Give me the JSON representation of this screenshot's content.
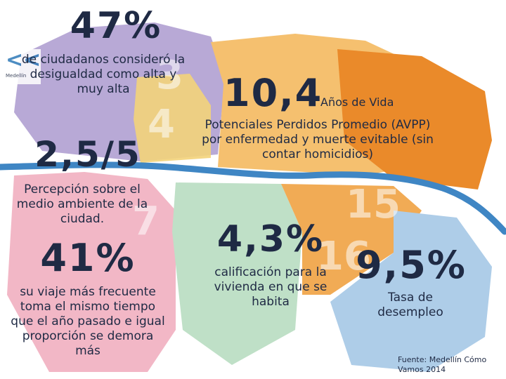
{
  "logo": {
    "mark": "<<",
    "small_text": "Medellín"
  },
  "stat_1": {
    "value": "47%",
    "text": "de ciudadanos consideró la desigualdad como alta y muy alta"
  },
  "stat_2": {
    "value": "10,4",
    "unit": "Años de Vida",
    "text": "Potenciales Perdidos Promedio (AVPP) por enfermedad y muerte evitable (sin contar homicidios)"
  },
  "stat_3": {
    "value": "2,5/5",
    "text": "Percepción sobre el medio ambiente de la ciudad."
  },
  "stat_4": {
    "value": "41%",
    "text": "su viaje más frecuente toma el mismo tiempo que el año pasado e igual proporción se demora más"
  },
  "stat_5": {
    "value": "4,3%",
    "text": "calificación para la vivienda en que se habita"
  },
  "stat_6": {
    "value": "9,5%",
    "text": "Tasa de desempleo"
  },
  "source": "Fuente: Medellín Cómo Vamos 2014",
  "districts": [
    "3",
    "4",
    "7",
    "15",
    "16"
  ],
  "colors": {
    "text": "#1f2a44",
    "river": "#3f86c4",
    "zone_lavender": "#b8a9d6",
    "zone_yellow": "#f3d37a",
    "zone_pink": "#f2b7c6",
    "zone_green": "#bfe0c7",
    "zone_orange": "#f1ab55",
    "zone_dark_orange": "#ea8a2a",
    "zone_peach": "#f5c06f",
    "zone_blue": "#aecde8"
  }
}
